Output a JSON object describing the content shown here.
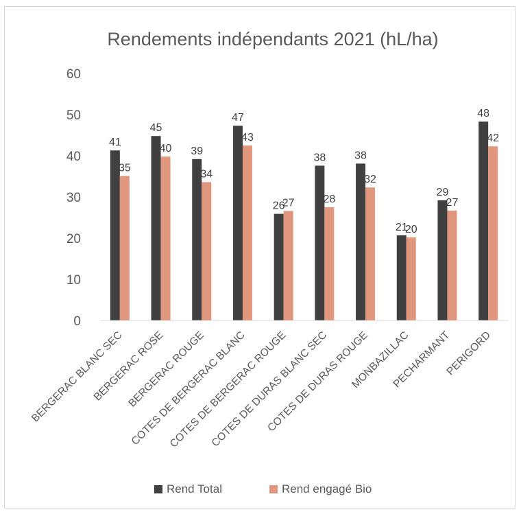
{
  "chart_data": {
    "type": "bar",
    "title": "Rendements indépendants 2021 (hL/ha)",
    "xlabel": "",
    "ylabel": "",
    "ylim": [
      0,
      60
    ],
    "yticks": [
      "0",
      "10",
      "20",
      "30",
      "40",
      "50",
      "60"
    ],
    "categories": [
      "BERGERAC BLANC SEC",
      "BERGERAC ROSE",
      "BERGERAC ROUGE",
      "COTES DE BERGERAC BLANC",
      "COTES DE BERGERAC ROUGE",
      "COTES DE DURAS BLANC SEC",
      "COTES DE DURAS ROUGE",
      "MONBAZILLAC",
      "PECHARMANT",
      "PERIGORD"
    ],
    "series": [
      {
        "name": "Rend Total",
        "color": "#404040",
        "values": [
          41.3,
          44.8,
          39.2,
          47.3,
          25.9,
          37.6,
          38.1,
          20.7,
          29.2,
          48.3
        ],
        "labels": [
          "41",
          "45",
          "39",
          "47",
          "26",
          "38",
          "38",
          "21",
          "29",
          "48"
        ]
      },
      {
        "name": "Rend engagé Bio",
        "color": "#e0977d",
        "values": [
          35.1,
          39.8,
          33.6,
          42.5,
          26.6,
          27.5,
          32.3,
          20.2,
          26.7,
          42.3
        ],
        "labels": [
          "35",
          "40",
          "34",
          "43",
          "27",
          "28",
          "32",
          "20",
          "27",
          "42"
        ]
      }
    ],
    "grid": false,
    "legend_position": "bottom"
  }
}
